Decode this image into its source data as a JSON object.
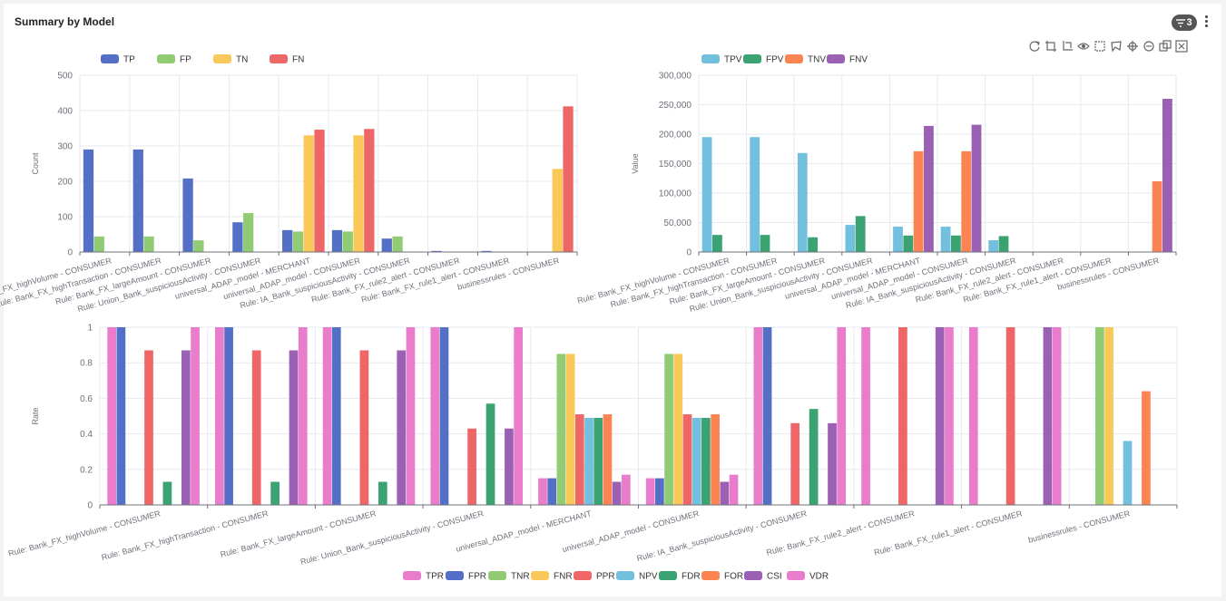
{
  "header": {
    "title": "Summary by Model",
    "filter_count": "3"
  },
  "toolbox": {
    "icons": [
      "refresh-icon",
      "crop-icon",
      "crop-reset-icon",
      "eye-icon",
      "rect-select-icon",
      "lasso-select-icon",
      "zoom-in-icon",
      "zoom-out-icon",
      "data-view-icon",
      "fullscreen-icon"
    ]
  },
  "colors": {
    "TP": "#5470c6",
    "FP": "#91cc75",
    "TN": "#fac858",
    "FN": "#ee6666",
    "TPV": "#73c0de",
    "FPV": "#3ba272",
    "TNV": "#fc8452",
    "FNV": "#9a60b4",
    "TPR": "#ea7ccc",
    "FPR": "#5470c6",
    "TNR": "#91cc75",
    "FNR": "#fac858",
    "PPR": "#ee6666",
    "NPV": "#73c0de",
    "FDR": "#3ba272",
    "FOR": "#fc8452",
    "CSI": "#9a60b4",
    "VDR": "#ea7ccc"
  },
  "chart_data": [
    {
      "id": "count",
      "type": "bar",
      "ylabel": "Count",
      "ylim": [
        0,
        500
      ],
      "yticks": [
        "0",
        "100",
        "200",
        "300",
        "400",
        "500"
      ],
      "legend_position": "top-left",
      "categories": [
        "Rule: Bank_FX_highVolume - CONSUMER",
        "Rule: Bank_FX_highTransaction - CONSUMER",
        "Rule: Bank_FX_largeAmount - CONSUMER",
        "Rule: Union_Bank_suspiciousActivity - CONSUMER",
        "universal_ADAP_model - MERCHANT",
        "universal_ADAP_model - CONSUMER",
        "Rule: IA_Bank_suspiciousActivity - CONSUMER",
        "Rule: Bank_FX_rule2_alert - CONSUMER",
        "Rule: Bank_FX_rule1_alert - CONSUMER",
        "businessrules - CONSUMER"
      ],
      "series": [
        {
          "name": "TP",
          "values": [
            290,
            290,
            208,
            84,
            62,
            62,
            38,
            3,
            3,
            0
          ]
        },
        {
          "name": "FP",
          "values": [
            44,
            44,
            33,
            110,
            58,
            58,
            44,
            0,
            0,
            0
          ]
        },
        {
          "name": "TN",
          "values": [
            0,
            0,
            0,
            0,
            330,
            330,
            0,
            0,
            0,
            235
          ]
        },
        {
          "name": "FN",
          "values": [
            0,
            0,
            0,
            0,
            346,
            348,
            0,
            0,
            0,
            412
          ]
        }
      ]
    },
    {
      "id": "value",
      "type": "bar",
      "ylabel": "Value",
      "ylim": [
        0,
        300000
      ],
      "yticks": [
        "0",
        "50,000",
        "100,000",
        "150,000",
        "200,000",
        "250,000",
        "300,000"
      ],
      "legend_position": "top-left",
      "categories": [
        "Rule: Bank_FX_highVolume - CONSUMER",
        "Rule: Bank_FX_highTransaction - CONSUMER",
        "Rule: Bank_FX_largeAmount - CONSUMER",
        "Rule: Union_Bank_suspiciousActivity - CONSUMER",
        "universal_ADAP_model - MERCHANT",
        "universal_ADAP_model - CONSUMER",
        "Rule: IA_Bank_suspiciousActivity - CONSUMER",
        "Rule: Bank_FX_rule2_alert - CONSUMER",
        "Rule: Bank_FX_rule1_alert - CONSUMER",
        "businessrules - CONSUMER"
      ],
      "series": [
        {
          "name": "TPV",
          "values": [
            195000,
            195000,
            168000,
            46000,
            43000,
            43000,
            20000,
            0,
            0,
            0
          ]
        },
        {
          "name": "FPV",
          "values": [
            29000,
            29000,
            25000,
            61000,
            28000,
            28000,
            27000,
            0,
            0,
            0
          ]
        },
        {
          "name": "TNV",
          "values": [
            0,
            0,
            0,
            0,
            171000,
            171000,
            0,
            0,
            0,
            120000
          ]
        },
        {
          "name": "FNV",
          "values": [
            0,
            0,
            0,
            0,
            214000,
            216000,
            0,
            0,
            0,
            260000
          ]
        }
      ]
    },
    {
      "id": "rate",
      "type": "bar",
      "ylabel": "Rate",
      "ylim": [
        0,
        1
      ],
      "yticks": [
        "0",
        "0.2",
        "0.4",
        "0.6",
        "0.8",
        "1"
      ],
      "legend_position": "bottom-center",
      "categories": [
        "Rule: Bank_FX_highVolume - CONSUMER",
        "Rule: Bank_FX_highTransaction - CONSUMER",
        "Rule: Bank_FX_largeAmount - CONSUMER",
        "Rule: Union_Bank_suspiciousActivity - CONSUMER",
        "universal_ADAP_model - MERCHANT",
        "universal_ADAP_model - CONSUMER",
        "Rule: IA_Bank_suspiciousActivity - CONSUMER",
        "Rule: Bank_FX_rule2_alert - CONSUMER",
        "Rule: Bank_FX_rule1_alert - CONSUMER",
        "businessrules - CONSUMER"
      ],
      "series": [
        {
          "name": "TPR",
          "values": [
            1,
            1,
            1,
            1,
            0.15,
            0.15,
            1,
            1,
            1,
            0
          ]
        },
        {
          "name": "FPR",
          "values": [
            1,
            1,
            1,
            1,
            0.15,
            0.15,
            1,
            0,
            0,
            0
          ]
        },
        {
          "name": "TNR",
          "values": [
            0,
            0,
            0,
            0,
            0.85,
            0.85,
            0,
            0,
            0,
            1
          ]
        },
        {
          "name": "FNR",
          "values": [
            0,
            0,
            0,
            0,
            0.85,
            0.85,
            0,
            0,
            0,
            1
          ]
        },
        {
          "name": "PPR",
          "values": [
            0.87,
            0.87,
            0.87,
            0.43,
            0.51,
            0.51,
            0.46,
            1,
            1,
            0
          ]
        },
        {
          "name": "NPV",
          "values": [
            0,
            0,
            0,
            0,
            0.49,
            0.49,
            0,
            0,
            0,
            0.36
          ]
        },
        {
          "name": "FDR",
          "values": [
            0.13,
            0.13,
            0.13,
            0.57,
            0.49,
            0.49,
            0.54,
            0,
            0,
            0
          ]
        },
        {
          "name": "FOR",
          "values": [
            0,
            0,
            0,
            0,
            0.51,
            0.51,
            0,
            0,
            0,
            0.64
          ]
        },
        {
          "name": "CSI",
          "values": [
            0.87,
            0.87,
            0.87,
            0.43,
            0.13,
            0.13,
            0.46,
            1,
            1,
            0
          ]
        },
        {
          "name": "VDR",
          "values": [
            1,
            1,
            1,
            1,
            0.17,
            0.17,
            1,
            1,
            1,
            0
          ]
        }
      ]
    }
  ]
}
